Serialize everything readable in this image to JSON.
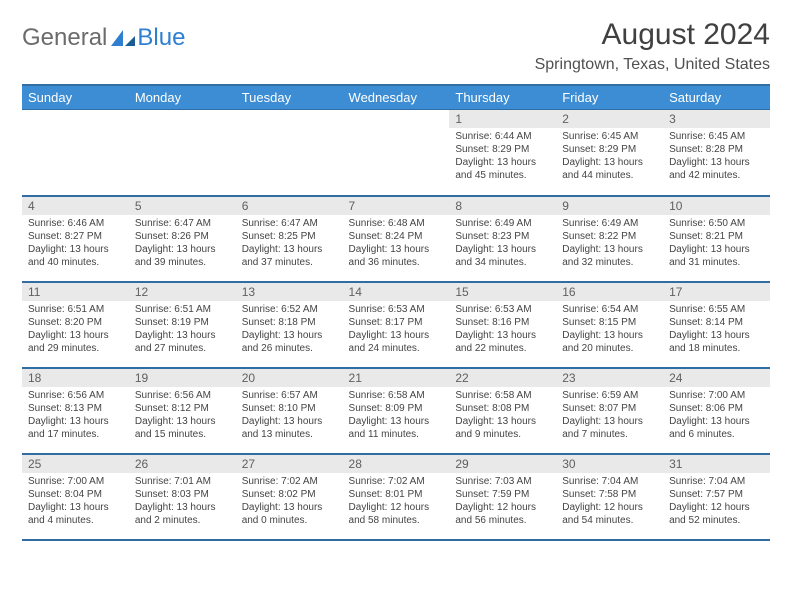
{
  "logo": {
    "general": "General",
    "blue": "Blue"
  },
  "title": "August 2024",
  "location": "Springtown, Texas, United States",
  "colors": {
    "header_bg": "#3c8dd4",
    "header_border": "#2f6da3",
    "daynum_bg": "#e9e9e9",
    "text": "#444444",
    "logo_gray": "#6b6b6b",
    "logo_blue": "#2f7fd0"
  },
  "font": {
    "day_body_size": 10,
    "header_size": 13,
    "title_size": 30
  },
  "day_labels": [
    "Sunday",
    "Monday",
    "Tuesday",
    "Wednesday",
    "Thursday",
    "Friday",
    "Saturday"
  ],
  "weeks": [
    [
      null,
      null,
      null,
      null,
      {
        "n": "1",
        "sunrise": "6:44 AM",
        "sunset": "8:29 PM",
        "daylight": "13 hours and 45 minutes."
      },
      {
        "n": "2",
        "sunrise": "6:45 AM",
        "sunset": "8:29 PM",
        "daylight": "13 hours and 44 minutes."
      },
      {
        "n": "3",
        "sunrise": "6:45 AM",
        "sunset": "8:28 PM",
        "daylight": "13 hours and 42 minutes."
      }
    ],
    [
      {
        "n": "4",
        "sunrise": "6:46 AM",
        "sunset": "8:27 PM",
        "daylight": "13 hours and 40 minutes."
      },
      {
        "n": "5",
        "sunrise": "6:47 AM",
        "sunset": "8:26 PM",
        "daylight": "13 hours and 39 minutes."
      },
      {
        "n": "6",
        "sunrise": "6:47 AM",
        "sunset": "8:25 PM",
        "daylight": "13 hours and 37 minutes."
      },
      {
        "n": "7",
        "sunrise": "6:48 AM",
        "sunset": "8:24 PM",
        "daylight": "13 hours and 36 minutes."
      },
      {
        "n": "8",
        "sunrise": "6:49 AM",
        "sunset": "8:23 PM",
        "daylight": "13 hours and 34 minutes."
      },
      {
        "n": "9",
        "sunrise": "6:49 AM",
        "sunset": "8:22 PM",
        "daylight": "13 hours and 32 minutes."
      },
      {
        "n": "10",
        "sunrise": "6:50 AM",
        "sunset": "8:21 PM",
        "daylight": "13 hours and 31 minutes."
      }
    ],
    [
      {
        "n": "11",
        "sunrise": "6:51 AM",
        "sunset": "8:20 PM",
        "daylight": "13 hours and 29 minutes."
      },
      {
        "n": "12",
        "sunrise": "6:51 AM",
        "sunset": "8:19 PM",
        "daylight": "13 hours and 27 minutes."
      },
      {
        "n": "13",
        "sunrise": "6:52 AM",
        "sunset": "8:18 PM",
        "daylight": "13 hours and 26 minutes."
      },
      {
        "n": "14",
        "sunrise": "6:53 AM",
        "sunset": "8:17 PM",
        "daylight": "13 hours and 24 minutes."
      },
      {
        "n": "15",
        "sunrise": "6:53 AM",
        "sunset": "8:16 PM",
        "daylight": "13 hours and 22 minutes."
      },
      {
        "n": "16",
        "sunrise": "6:54 AM",
        "sunset": "8:15 PM",
        "daylight": "13 hours and 20 minutes."
      },
      {
        "n": "17",
        "sunrise": "6:55 AM",
        "sunset": "8:14 PM",
        "daylight": "13 hours and 18 minutes."
      }
    ],
    [
      {
        "n": "18",
        "sunrise": "6:56 AM",
        "sunset": "8:13 PM",
        "daylight": "13 hours and 17 minutes."
      },
      {
        "n": "19",
        "sunrise": "6:56 AM",
        "sunset": "8:12 PM",
        "daylight": "13 hours and 15 minutes."
      },
      {
        "n": "20",
        "sunrise": "6:57 AM",
        "sunset": "8:10 PM",
        "daylight": "13 hours and 13 minutes."
      },
      {
        "n": "21",
        "sunrise": "6:58 AM",
        "sunset": "8:09 PM",
        "daylight": "13 hours and 11 minutes."
      },
      {
        "n": "22",
        "sunrise": "6:58 AM",
        "sunset": "8:08 PM",
        "daylight": "13 hours and 9 minutes."
      },
      {
        "n": "23",
        "sunrise": "6:59 AM",
        "sunset": "8:07 PM",
        "daylight": "13 hours and 7 minutes."
      },
      {
        "n": "24",
        "sunrise": "7:00 AM",
        "sunset": "8:06 PM",
        "daylight": "13 hours and 6 minutes."
      }
    ],
    [
      {
        "n": "25",
        "sunrise": "7:00 AM",
        "sunset": "8:04 PM",
        "daylight": "13 hours and 4 minutes."
      },
      {
        "n": "26",
        "sunrise": "7:01 AM",
        "sunset": "8:03 PM",
        "daylight": "13 hours and 2 minutes."
      },
      {
        "n": "27",
        "sunrise": "7:02 AM",
        "sunset": "8:02 PM",
        "daylight": "13 hours and 0 minutes."
      },
      {
        "n": "28",
        "sunrise": "7:02 AM",
        "sunset": "8:01 PM",
        "daylight": "12 hours and 58 minutes."
      },
      {
        "n": "29",
        "sunrise": "7:03 AM",
        "sunset": "7:59 PM",
        "daylight": "12 hours and 56 minutes."
      },
      {
        "n": "30",
        "sunrise": "7:04 AM",
        "sunset": "7:58 PM",
        "daylight": "12 hours and 54 minutes."
      },
      {
        "n": "31",
        "sunrise": "7:04 AM",
        "sunset": "7:57 PM",
        "daylight": "12 hours and 52 minutes."
      }
    ]
  ],
  "labels": {
    "sunrise": "Sunrise: ",
    "sunset": "Sunset: ",
    "daylight": "Daylight: "
  }
}
